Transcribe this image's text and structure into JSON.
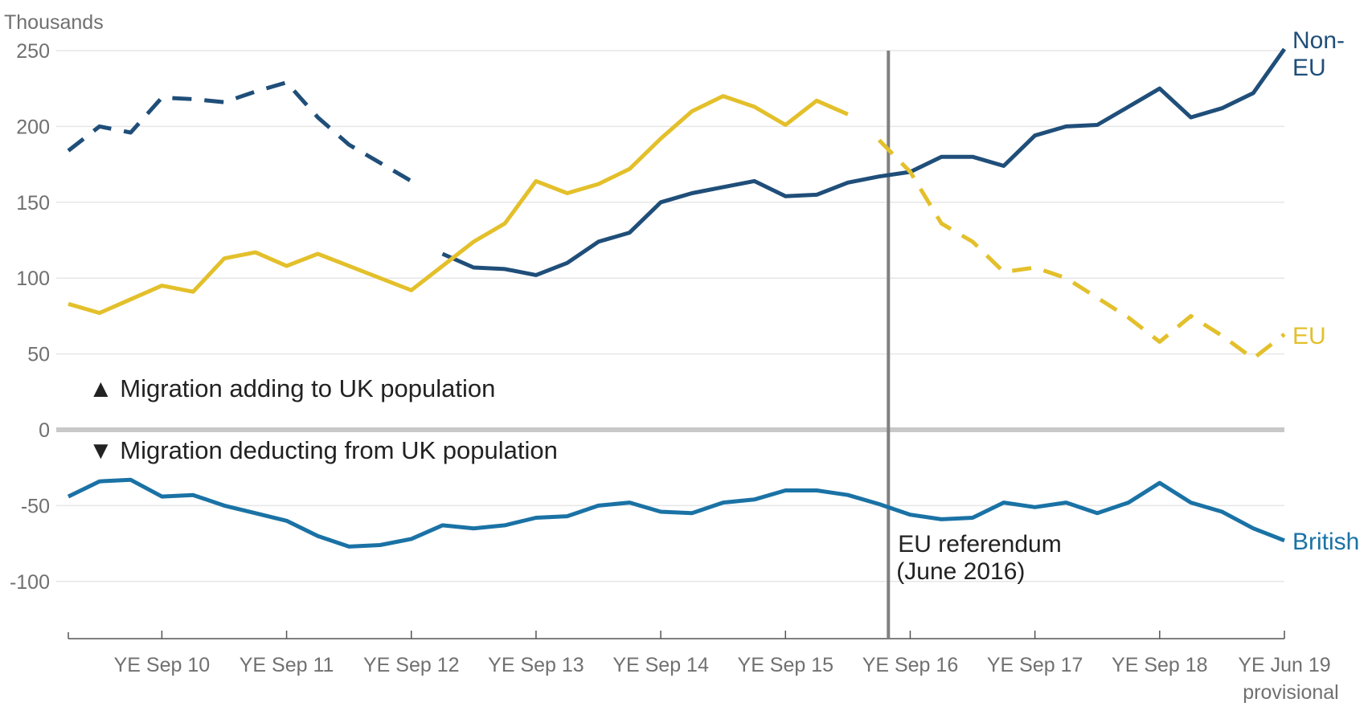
{
  "chart_data": {
    "type": "line",
    "title": "",
    "ylabel": "Thousands",
    "xlabel": "",
    "ylim": [
      -135,
      250
    ],
    "yticks": [
      250,
      200,
      150,
      100,
      50,
      0,
      -50,
      -100
    ],
    "x_range": [
      0,
      39
    ],
    "x_ticks": [
      {
        "x": 3,
        "label": "YE Sep 10"
      },
      {
        "x": 7,
        "label": "YE Sep 11"
      },
      {
        "x": 11,
        "label": "YE Sep 12"
      },
      {
        "x": 15,
        "label": "YE Sep 13"
      },
      {
        "x": 19,
        "label": "YE Sep 14"
      },
      {
        "x": 23,
        "label": "YE Sep 15"
      },
      {
        "x": 27,
        "label": "YE Sep 16"
      },
      {
        "x": 31,
        "label": "YE Sep 17"
      },
      {
        "x": 35,
        "label": "YE Sep 18"
      },
      {
        "x": 39,
        "label": "YE Jun 19",
        "sublabel": "provisional"
      }
    ],
    "series": [
      {
        "name": "Non-EU (dashed)",
        "color": "#1f4e79",
        "dashed": true,
        "x": [
          0,
          1,
          2,
          3,
          4,
          5,
          6,
          7,
          8,
          9,
          10,
          11
        ],
        "values": [
          184,
          200,
          196,
          219,
          218,
          216,
          223,
          229,
          206,
          188,
          176,
          164
        ]
      },
      {
        "name": "Non-EU",
        "color": "#1f4e79",
        "dashed": false,
        "x": [
          12,
          13,
          14,
          15,
          16,
          17,
          18,
          19,
          20,
          21,
          22,
          23,
          24,
          25,
          26,
          27,
          28,
          29,
          30,
          31,
          32,
          33,
          34,
          35,
          36,
          37,
          38,
          39
        ],
        "values": [
          116,
          107,
          106,
          102,
          110,
          124,
          130,
          150,
          156,
          160,
          164,
          154,
          155,
          163,
          167,
          170,
          180,
          180,
          174,
          194,
          200,
          201,
          213,
          225,
          206,
          212,
          222,
          251
        ]
      },
      {
        "name": "EU",
        "color": "#e3c02b",
        "dashed": false,
        "x": [
          0,
          1,
          2,
          3,
          4,
          5,
          6,
          7,
          8,
          9,
          10,
          11,
          12,
          13,
          14,
          15,
          16,
          17,
          18,
          19,
          20,
          21,
          22,
          23,
          24,
          25
        ],
        "values": [
          83,
          77,
          86,
          95,
          91,
          113,
          117,
          108,
          116,
          108,
          100,
          92,
          108,
          124,
          136,
          164,
          156,
          162,
          172,
          192,
          210,
          220,
          213,
          201,
          217,
          208
        ]
      },
      {
        "name": "EU (dashed)",
        "color": "#e3c02b",
        "dashed": true,
        "x": [
          26,
          27,
          28,
          29,
          30,
          31,
          32,
          33,
          34,
          35,
          36,
          37,
          38,
          39
        ],
        "values": [
          191,
          170,
          136,
          124,
          104,
          107,
          100,
          87,
          74,
          58,
          75,
          62,
          47,
          63
        ]
      },
      {
        "name": "British",
        "color": "#1a72a5",
        "dashed": false,
        "x": [
          0,
          1,
          2,
          3,
          4,
          5,
          6,
          7,
          8,
          9,
          10,
          11,
          12,
          13,
          14,
          15,
          16,
          17,
          18,
          19,
          20,
          21,
          22,
          23,
          24,
          25,
          26,
          27,
          28,
          29,
          30,
          31,
          32,
          33,
          34,
          35,
          36,
          37,
          38,
          39
        ],
        "values": [
          -44,
          -34,
          -33,
          -44,
          -43,
          -50,
          -55,
          -60,
          -70,
          -77,
          -76,
          -72,
          -63,
          -65,
          -63,
          -58,
          -57,
          -50,
          -48,
          -54,
          -55,
          -48,
          -46,
          -40,
          -40,
          -43,
          -49,
          -56,
          -59,
          -58,
          -48,
          -51,
          -48,
          -55,
          -48,
          -35,
          -48,
          -54,
          -65,
          -73
        ]
      }
    ],
    "series_labels": [
      {
        "name": "Non-",
        "name2": "EU",
        "color": "#1f4e79"
      },
      {
        "name": "EU",
        "color": "#e3c02b"
      },
      {
        "name": "British",
        "color": "#1a72a5"
      }
    ],
    "reference_line": {
      "x": 26.3,
      "label_line1": "EU referendum",
      "label_line2": "(June 2016)"
    },
    "annotations": [
      {
        "text": "▲ Migration adding to UK population"
      },
      {
        "text": "▼ Migration deducting from UK population"
      }
    ]
  }
}
